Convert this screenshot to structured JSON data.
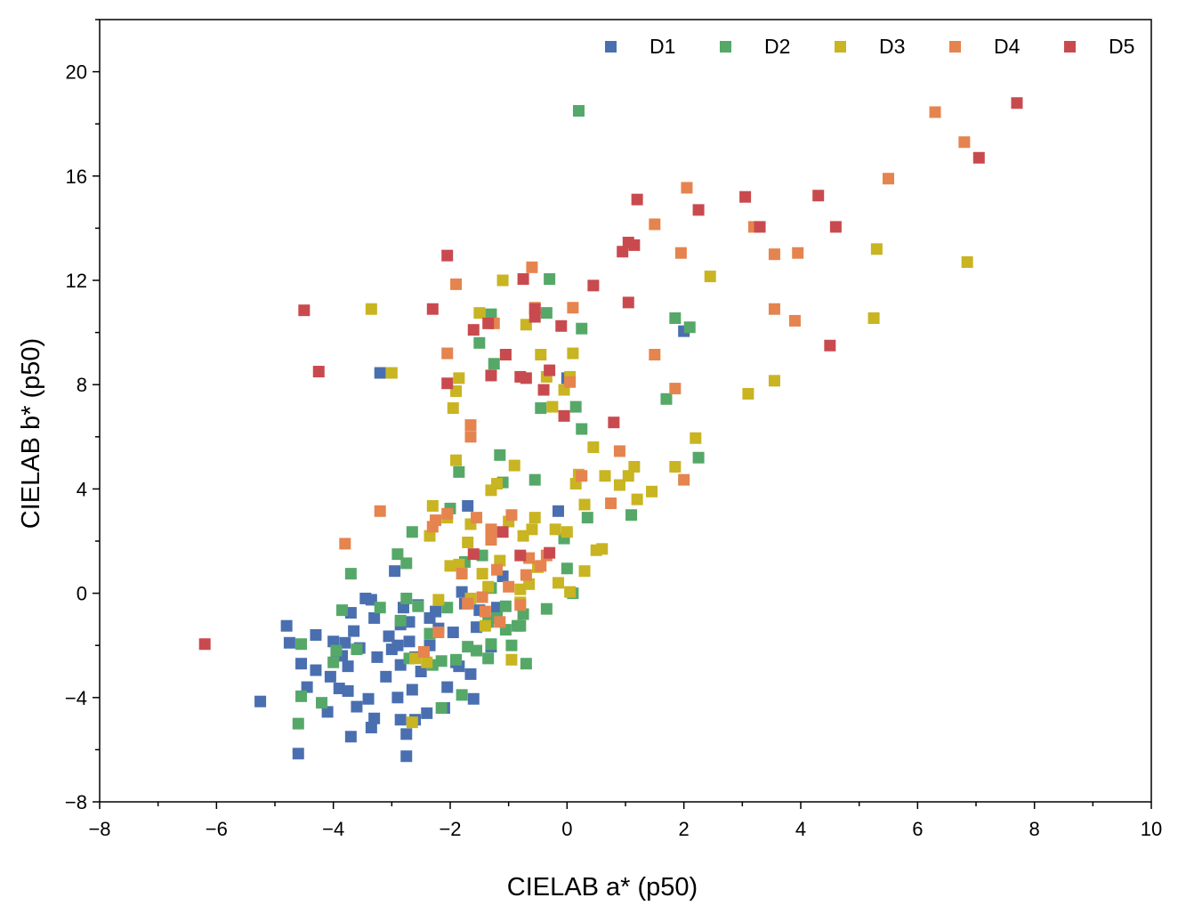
{
  "chart_data": {
    "type": "scatter",
    "xlabel": "CIELAB a* (p50)",
    "ylabel": "CIELAB b* (p50)",
    "xlim": [
      -8,
      10
    ],
    "ylim": [
      -8,
      22
    ],
    "xticks": [
      -8,
      -6,
      -4,
      -2,
      0,
      2,
      4,
      6,
      8,
      10
    ],
    "yticks": [
      -8,
      -4,
      0,
      4,
      8,
      12,
      16,
      20
    ],
    "xtick_labels": [
      "−8",
      "−6",
      "−4",
      "−2",
      "0",
      "2",
      "4",
      "6",
      "8",
      "10"
    ],
    "ytick_labels": [
      "−8",
      "−4",
      "0",
      "4",
      "8",
      "12",
      "16",
      "20"
    ],
    "grid": false,
    "legend_position": "top-right",
    "marker": "square",
    "series": [
      {
        "name": "D1",
        "color": "#4A6FB0",
        "points": [
          [
            -5.25,
            -4.15
          ],
          [
            -4.8,
            -1.25
          ],
          [
            -4.75,
            -1.9
          ],
          [
            -4.6,
            -6.15
          ],
          [
            -4.55,
            -2.7
          ],
          [
            -4.45,
            -3.6
          ],
          [
            -4.3,
            -1.6
          ],
          [
            -4.3,
            -2.95
          ],
          [
            -4.1,
            -4.55
          ],
          [
            -4.05,
            -3.2
          ],
          [
            -4.0,
            -1.85
          ],
          [
            -3.95,
            -2.35
          ],
          [
            -3.9,
            -3.65
          ],
          [
            -3.85,
            -2.4
          ],
          [
            -3.8,
            -1.9
          ],
          [
            -3.75,
            -2.8
          ],
          [
            -3.75,
            -3.75
          ],
          [
            -3.7,
            -5.5
          ],
          [
            -3.7,
            -0.75
          ],
          [
            -3.65,
            -1.45
          ],
          [
            -3.6,
            -4.35
          ],
          [
            -3.55,
            -2.1
          ],
          [
            -3.45,
            -0.2
          ],
          [
            -3.4,
            -4.05
          ],
          [
            -3.35,
            -5.15
          ],
          [
            -3.35,
            -0.25
          ],
          [
            -3.3,
            -0.95
          ],
          [
            -3.3,
            -4.8
          ],
          [
            -3.25,
            -2.45
          ],
          [
            -3.2,
            8.45
          ],
          [
            -3.1,
            -3.2
          ],
          [
            -3.05,
            -1.65
          ],
          [
            -3.0,
            -2.15
          ],
          [
            -2.95,
            0.85
          ],
          [
            -2.9,
            -2.0
          ],
          [
            -2.9,
            -4.0
          ],
          [
            -2.85,
            -1.2
          ],
          [
            -2.85,
            -2.75
          ],
          [
            -2.85,
            -4.85
          ],
          [
            -2.8,
            -0.55
          ],
          [
            -2.75,
            -5.4
          ],
          [
            -2.75,
            -6.25
          ],
          [
            -2.7,
            -1.1
          ],
          [
            -2.7,
            -1.85
          ],
          [
            -2.65,
            -3.7
          ],
          [
            -2.6,
            -2.45
          ],
          [
            -2.6,
            -4.85
          ],
          [
            -2.55,
            -0.45
          ],
          [
            -2.5,
            -3.0
          ],
          [
            -2.4,
            -4.6
          ],
          [
            -2.35,
            -2.0
          ],
          [
            -2.35,
            -0.95
          ],
          [
            -2.25,
            -0.7
          ],
          [
            -2.2,
            -1.35
          ],
          [
            -2.1,
            -4.4
          ],
          [
            -2.05,
            -3.6
          ],
          [
            -1.95,
            -1.5
          ],
          [
            -1.9,
            -2.65
          ],
          [
            -1.85,
            -2.8
          ],
          [
            -1.8,
            0.05
          ],
          [
            -1.75,
            -0.4
          ],
          [
            -1.7,
            3.35
          ],
          [
            -1.65,
            -3.1
          ],
          [
            -1.6,
            -4.05
          ],
          [
            -1.55,
            -1.3
          ],
          [
            -1.5,
            -0.65
          ],
          [
            -1.3,
            -2.05
          ],
          [
            -1.2,
            -0.55
          ],
          [
            -1.1,
            0.65
          ],
          [
            0.0,
            8.25
          ],
          [
            -0.15,
            3.15
          ],
          [
            2.0,
            10.05
          ]
        ]
      },
      {
        "name": "D2",
        "color": "#55A868",
        "points": [
          [
            -4.6,
            -5.0
          ],
          [
            -4.55,
            -1.95
          ],
          [
            -4.55,
            -3.95
          ],
          [
            -4.2,
            -4.2
          ],
          [
            -4.0,
            -2.65
          ],
          [
            -3.95,
            -2.2
          ],
          [
            -3.85,
            -0.65
          ],
          [
            -3.7,
            0.75
          ],
          [
            -3.6,
            -2.15
          ],
          [
            -3.2,
            -0.55
          ],
          [
            -2.9,
            1.5
          ],
          [
            -2.85,
            -1.05
          ],
          [
            -2.75,
            1.15
          ],
          [
            -2.75,
            -0.2
          ],
          [
            -2.7,
            -2.5
          ],
          [
            -2.65,
            2.35
          ],
          [
            -2.55,
            -0.5
          ],
          [
            -2.45,
            -2.25
          ],
          [
            -2.35,
            -1.55
          ],
          [
            -2.3,
            -2.75
          ],
          [
            -2.15,
            -2.6
          ],
          [
            -2.15,
            -4.4
          ],
          [
            -2.05,
            -0.55
          ],
          [
            -2.0,
            3.25
          ],
          [
            -1.9,
            -2.55
          ],
          [
            -1.85,
            4.65
          ],
          [
            -1.8,
            -3.9
          ],
          [
            -1.75,
            1.2
          ],
          [
            -1.7,
            -2.05
          ],
          [
            -1.55,
            -2.2
          ],
          [
            -1.5,
            9.6
          ],
          [
            -1.45,
            1.45
          ],
          [
            -1.35,
            -1.1
          ],
          [
            -1.35,
            -2.5
          ],
          [
            -1.3,
            -1.95
          ],
          [
            -1.3,
            0.2
          ],
          [
            -1.3,
            10.7
          ],
          [
            -1.25,
            8.8
          ],
          [
            -1.2,
            -0.95
          ],
          [
            -1.15,
            5.3
          ],
          [
            -1.1,
            4.25
          ],
          [
            -1.05,
            -0.5
          ],
          [
            -1.05,
            -1.4
          ],
          [
            -0.95,
            -2.0
          ],
          [
            -0.85,
            -1.25
          ],
          [
            -0.8,
            -1.25
          ],
          [
            -0.75,
            -0.8
          ],
          [
            -0.7,
            -2.7
          ],
          [
            -0.55,
            4.35
          ],
          [
            -0.45,
            7.1
          ],
          [
            -0.35,
            10.75
          ],
          [
            -0.35,
            -0.6
          ],
          [
            -0.05,
            2.1
          ],
          [
            0.0,
            0.95
          ],
          [
            0.1,
            0.0
          ],
          [
            0.15,
            7.15
          ],
          [
            0.25,
            6.3
          ],
          [
            0.25,
            10.15
          ],
          [
            0.2,
            18.5
          ],
          [
            0.35,
            2.9
          ],
          [
            1.1,
            3.0
          ],
          [
            1.7,
            7.45
          ],
          [
            1.85,
            10.55
          ],
          [
            2.1,
            10.2
          ],
          [
            2.25,
            5.2
          ],
          [
            -0.3,
            12.05
          ]
        ]
      },
      {
        "name": "D3",
        "color": "#C9B422",
        "points": [
          [
            -3.35,
            10.9
          ],
          [
            -3.0,
            8.45
          ],
          [
            -2.65,
            -4.95
          ],
          [
            -2.6,
            -2.5
          ],
          [
            -2.4,
            -2.65
          ],
          [
            -2.35,
            2.2
          ],
          [
            -2.3,
            3.35
          ],
          [
            -2.2,
            -0.25
          ],
          [
            -2.05,
            2.9
          ],
          [
            -2.0,
            1.05
          ],
          [
            -1.95,
            7.1
          ],
          [
            -1.9,
            5.1
          ],
          [
            -1.9,
            7.75
          ],
          [
            -1.85,
            8.25
          ],
          [
            -1.85,
            1.1
          ],
          [
            -1.7,
            1.95
          ],
          [
            -1.65,
            2.65
          ],
          [
            -1.65,
            -0.2
          ],
          [
            -1.5,
            10.75
          ],
          [
            -1.45,
            0.75
          ],
          [
            -1.4,
            -1.25
          ],
          [
            -1.35,
            0.25
          ],
          [
            -1.3,
            3.95
          ],
          [
            -1.2,
            4.2
          ],
          [
            -1.15,
            1.25
          ],
          [
            -1.1,
            12.0
          ],
          [
            -1.05,
            9.15
          ],
          [
            -1.0,
            2.75
          ],
          [
            -0.95,
            -2.55
          ],
          [
            -0.9,
            4.9
          ],
          [
            -0.8,
            -0.35
          ],
          [
            -0.8,
            0.15
          ],
          [
            -0.75,
            2.2
          ],
          [
            -0.7,
            10.3
          ],
          [
            -0.65,
            0.35
          ],
          [
            -0.6,
            2.45
          ],
          [
            -0.55,
            2.9
          ],
          [
            -0.5,
            1.0
          ],
          [
            -0.45,
            9.15
          ],
          [
            -0.35,
            8.3
          ],
          [
            -0.25,
            7.15
          ],
          [
            -0.2,
            2.45
          ],
          [
            -0.15,
            0.4
          ],
          [
            -0.05,
            7.8
          ],
          [
            0.0,
            2.35
          ],
          [
            0.05,
            0.05
          ],
          [
            0.1,
            9.2
          ],
          [
            0.15,
            4.2
          ],
          [
            0.2,
            4.55
          ],
          [
            0.3,
            3.4
          ],
          [
            0.3,
            0.85
          ],
          [
            0.45,
            5.6
          ],
          [
            0.5,
            1.65
          ],
          [
            0.6,
            1.7
          ],
          [
            0.65,
            4.5
          ],
          [
            0.9,
            4.15
          ],
          [
            1.05,
            4.5
          ],
          [
            1.15,
            4.85
          ],
          [
            1.2,
            3.6
          ],
          [
            1.45,
            3.9
          ],
          [
            1.85,
            4.85
          ],
          [
            2.2,
            5.95
          ],
          [
            2.45,
            12.15
          ],
          [
            3.1,
            7.65
          ],
          [
            3.55,
            8.15
          ],
          [
            5.25,
            10.55
          ],
          [
            5.3,
            13.2
          ],
          [
            6.85,
            12.7
          ],
          [
            0.05,
            8.3
          ]
        ]
      },
      {
        "name": "D4",
        "color": "#E5844E",
        "points": [
          [
            -3.8,
            1.9
          ],
          [
            -3.2,
            3.15
          ],
          [
            -2.45,
            -2.25
          ],
          [
            -2.3,
            2.55
          ],
          [
            -2.25,
            2.8
          ],
          [
            -2.2,
            -1.5
          ],
          [
            -2.05,
            3.05
          ],
          [
            -2.05,
            9.2
          ],
          [
            -1.9,
            11.85
          ],
          [
            -1.8,
            0.75
          ],
          [
            -1.7,
            -0.4
          ],
          [
            -1.65,
            6.45
          ],
          [
            -1.65,
            6.0
          ],
          [
            -1.55,
            2.9
          ],
          [
            -1.45,
            -0.15
          ],
          [
            -1.4,
            -0.7
          ],
          [
            -1.3,
            2.45
          ],
          [
            -1.3,
            2.05
          ],
          [
            -1.25,
            10.35
          ],
          [
            -1.2,
            0.9
          ],
          [
            -1.15,
            -1.1
          ],
          [
            -1.0,
            0.25
          ],
          [
            -0.95,
            3.0
          ],
          [
            -0.8,
            -0.45
          ],
          [
            -0.7,
            0.7
          ],
          [
            -0.65,
            1.35
          ],
          [
            -0.6,
            12.5
          ],
          [
            -0.55,
            10.95
          ],
          [
            -0.45,
            1.05
          ],
          [
            -0.35,
            1.45
          ],
          [
            0.05,
            8.1
          ],
          [
            0.1,
            10.95
          ],
          [
            0.25,
            4.5
          ],
          [
            0.75,
            3.45
          ],
          [
            0.9,
            5.45
          ],
          [
            1.5,
            14.15
          ],
          [
            1.5,
            9.15
          ],
          [
            1.85,
            7.85
          ],
          [
            1.95,
            13.05
          ],
          [
            2.0,
            4.35
          ],
          [
            2.05,
            15.55
          ],
          [
            3.2,
            14.05
          ],
          [
            3.55,
            13.0
          ],
          [
            3.55,
            10.9
          ],
          [
            3.9,
            10.45
          ],
          [
            3.95,
            13.05
          ],
          [
            5.5,
            15.9
          ],
          [
            6.3,
            18.45
          ],
          [
            6.8,
            17.3
          ]
        ]
      },
      {
        "name": "D5",
        "color": "#C94A4E",
        "points": [
          [
            -6.2,
            -1.95
          ],
          [
            -4.5,
            10.85
          ],
          [
            -4.25,
            8.5
          ],
          [
            -2.3,
            10.9
          ],
          [
            -2.05,
            12.95
          ],
          [
            -2.05,
            8.05
          ],
          [
            -1.6,
            1.5
          ],
          [
            -1.6,
            10.1
          ],
          [
            -1.35,
            10.35
          ],
          [
            -1.3,
            8.35
          ],
          [
            -1.1,
            2.35
          ],
          [
            -1.05,
            9.15
          ],
          [
            -0.8,
            8.3
          ],
          [
            -0.8,
            1.45
          ],
          [
            -0.7,
            8.25
          ],
          [
            -0.55,
            10.9
          ],
          [
            -0.55,
            10.6
          ],
          [
            -0.4,
            7.8
          ],
          [
            -0.3,
            8.55
          ],
          [
            -0.3,
            1.55
          ],
          [
            -0.1,
            10.25
          ],
          [
            -0.05,
            6.8
          ],
          [
            0.45,
            11.8
          ],
          [
            0.8,
            6.55
          ],
          [
            0.95,
            13.1
          ],
          [
            1.05,
            13.45
          ],
          [
            1.05,
            11.15
          ],
          [
            1.15,
            13.35
          ],
          [
            1.2,
            15.1
          ],
          [
            2.25,
            14.7
          ],
          [
            3.05,
            15.2
          ],
          [
            3.3,
            14.05
          ],
          [
            4.3,
            15.25
          ],
          [
            4.5,
            9.5
          ],
          [
            4.6,
            14.05
          ],
          [
            7.05,
            16.7
          ],
          [
            7.7,
            18.8
          ],
          [
            -0.75,
            12.05
          ]
        ]
      }
    ]
  }
}
